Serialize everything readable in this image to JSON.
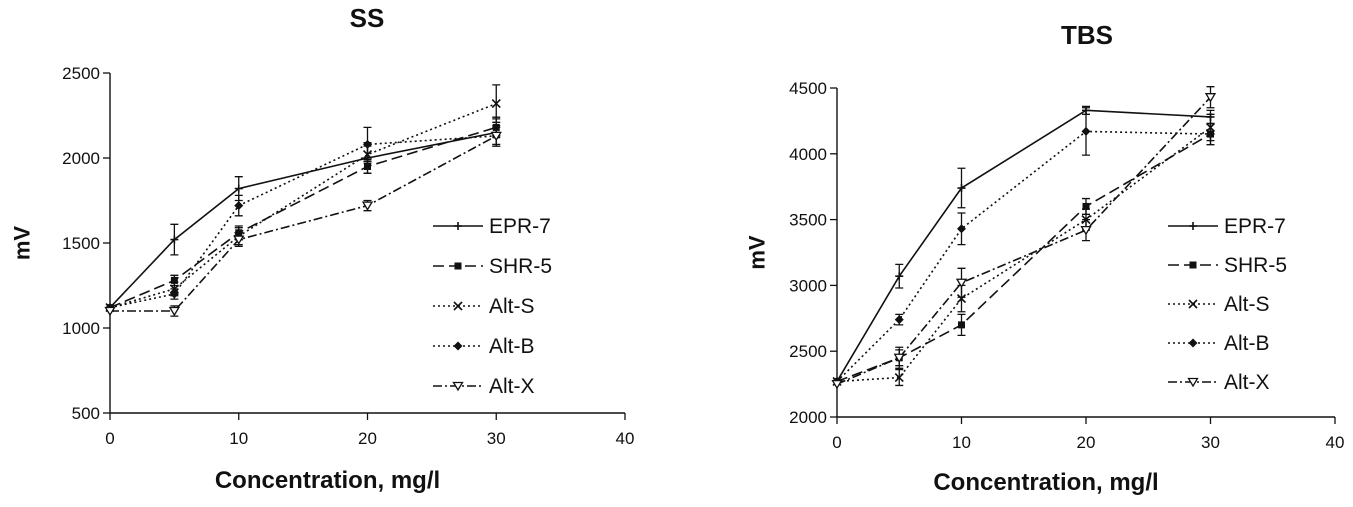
{
  "chart_data": [
    {
      "type": "line",
      "title": "SS",
      "xlabel": "Concentration, mg/l",
      "ylabel": "mV",
      "xlim": [
        0,
        40
      ],
      "ylim": [
        500,
        2500
      ],
      "xticks": [
        0,
        10,
        20,
        30,
        40
      ],
      "yticks": [
        500,
        1000,
        1500,
        2000,
        2500
      ],
      "grid": false,
      "legend_position": "right",
      "x": [
        0,
        5,
        10,
        20,
        30
      ],
      "series": [
        {
          "name": "EPR-7",
          "dash": "solid",
          "marker": "plus",
          "values": [
            1120,
            1520,
            1820,
            2000,
            2150
          ],
          "errors": [
            0,
            90,
            70,
            90,
            80
          ]
        },
        {
          "name": "SHR-5",
          "dash": "dashed",
          "marker": "square",
          "values": [
            1120,
            1280,
            1560,
            1950,
            2180
          ],
          "errors": [
            0,
            30,
            40,
            40,
            60
          ]
        },
        {
          "name": "Alt-S",
          "dash": "dotted",
          "marker": "x",
          "values": [
            1120,
            1230,
            1540,
            2020,
            2320
          ],
          "errors": [
            0,
            40,
            50,
            50,
            110
          ]
        },
        {
          "name": "Alt-B",
          "dash": "dotted",
          "marker": "diamond",
          "values": [
            1120,
            1200,
            1720,
            2080,
            2130
          ],
          "errors": [
            0,
            30,
            60,
            100,
            60
          ]
        },
        {
          "name": "Alt-X",
          "dash": "dashdot",
          "marker": "triangle-down",
          "values": [
            1100,
            1100,
            1520,
            1720,
            2130
          ],
          "errors": [
            0,
            30,
            40,
            30,
            50
          ]
        }
      ]
    },
    {
      "type": "line",
      "title": "TBS",
      "xlabel": "Concentration, mg/l",
      "ylabel": "mV",
      "xlim": [
        0,
        40
      ],
      "ylim": [
        2000,
        4500
      ],
      "xticks": [
        0,
        10,
        20,
        30,
        40
      ],
      "yticks": [
        2000,
        2500,
        3000,
        3500,
        4000,
        4500
      ],
      "grid": false,
      "legend_position": "right",
      "x": [
        0,
        5,
        10,
        20,
        30
      ],
      "series": [
        {
          "name": "EPR-7",
          "dash": "solid",
          "marker": "plus",
          "values": [
            2270,
            3070,
            3740,
            4330,
            4280
          ],
          "errors": [
            0,
            90,
            150,
            30,
            50
          ]
        },
        {
          "name": "SHR-5",
          "dash": "dashed",
          "marker": "square",
          "values": [
            2270,
            2450,
            2700,
            3600,
            4150
          ],
          "errors": [
            0,
            60,
            80,
            60,
            80
          ]
        },
        {
          "name": "Alt-S",
          "dash": "dotted",
          "marker": "x",
          "values": [
            2270,
            2300,
            2900,
            3500,
            4200
          ],
          "errors": [
            0,
            60,
            100,
            80,
            100
          ]
        },
        {
          "name": "Alt-B",
          "dash": "dotted",
          "marker": "diamond",
          "values": [
            2270,
            2740,
            3430,
            4170,
            4150
          ],
          "errors": [
            0,
            40,
            120,
            180,
            80
          ]
        },
        {
          "name": "Alt-X",
          "dash": "dashdot",
          "marker": "triangle-down",
          "values": [
            2250,
            2450,
            3020,
            3420,
            4430
          ],
          "errors": [
            0,
            80,
            110,
            80,
            80
          ]
        }
      ]
    }
  ]
}
